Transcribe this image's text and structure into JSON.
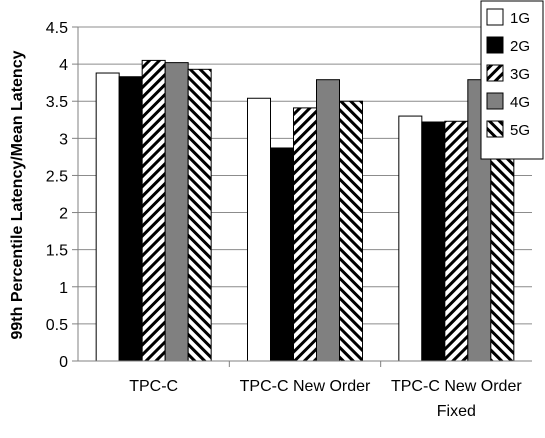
{
  "chart_data": {
    "type": "bar",
    "title": "",
    "xlabel": "",
    "ylabel": "99th Percentile Latency/Mean Latency",
    "ylim": [
      0,
      4.5
    ],
    "yticks": [
      0,
      0.5,
      1,
      1.5,
      2,
      2.5,
      3,
      3.5,
      4,
      4.5
    ],
    "ytick_labels": [
      "0",
      "0.5",
      "1",
      "1.5",
      "2",
      "2.5",
      "3",
      "3.5",
      "4",
      "4.5"
    ],
    "categories": [
      [
        "TPC-C"
      ],
      [
        "TPC-C New Order"
      ],
      [
        "TPC-C New Order",
        "Fixed"
      ]
    ],
    "series": [
      {
        "name": "1G",
        "values": [
          3.88,
          3.54,
          3.3
        ],
        "fill": "#ffffff",
        "pattern": "none"
      },
      {
        "name": "2G",
        "values": [
          3.83,
          2.87,
          3.22
        ],
        "fill": "#000000",
        "pattern": "none"
      },
      {
        "name": "3G",
        "values": [
          4.05,
          3.41,
          3.23
        ],
        "fill": "#ffffff",
        "pattern": "diag-right"
      },
      {
        "name": "4G",
        "values": [
          4.02,
          3.79,
          3.79
        ],
        "fill": "#808080",
        "pattern": "none"
      },
      {
        "name": "5G",
        "values": [
          3.93,
          3.5,
          3.22
        ],
        "fill": "#ffffff",
        "pattern": "diag-left"
      }
    ],
    "grid": true,
    "legend": "top-right"
  }
}
